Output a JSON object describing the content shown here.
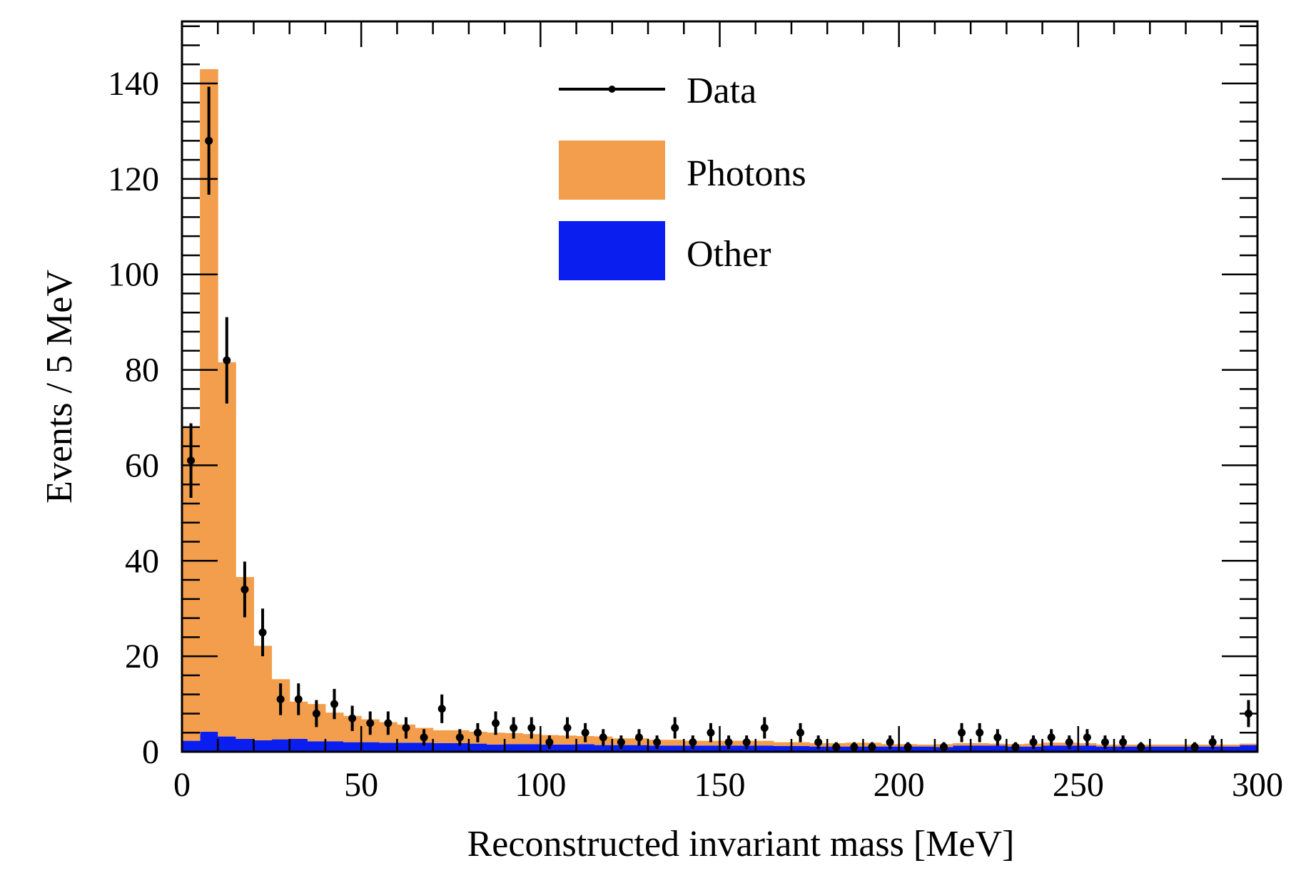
{
  "chart_data": {
    "type": "bar",
    "xlabel": "Reconstructed invariant mass [MeV]",
    "ylabel": "Events / 5 MeV",
    "xlim": [
      0,
      300
    ],
    "ylim": [
      0,
      153
    ],
    "bin_width": 5,
    "xticks": [
      0,
      50,
      100,
      150,
      200,
      250,
      300
    ],
    "yticks": [
      0,
      20,
      40,
      60,
      80,
      100,
      120,
      140
    ],
    "grid": false,
    "legend_position": "top-center",
    "colors": {
      "photons": "#f29e4c",
      "other": "#0a1ef0",
      "data": "#000000"
    },
    "legend": [
      {
        "label": "Data",
        "style": "marker-line"
      },
      {
        "label": "Photons",
        "style": "fill"
      },
      {
        "label": "Other",
        "style": "fill"
      }
    ],
    "bin_edges_start": [
      0,
      5,
      10,
      15,
      20,
      25,
      30,
      35,
      40,
      45,
      50,
      55,
      60,
      65,
      70,
      75,
      80,
      85,
      90,
      95,
      100,
      105,
      110,
      115,
      120,
      125,
      130,
      135,
      140,
      145,
      150,
      155,
      160,
      165,
      170,
      175,
      180,
      185,
      190,
      195,
      200,
      205,
      210,
      215,
      220,
      225,
      230,
      235,
      240,
      245,
      250,
      255,
      260,
      265,
      270,
      275,
      280,
      285,
      290,
      295
    ],
    "series": [
      {
        "name": "Other",
        "style": "stacked-histogram",
        "values": [
          2.3,
          4.2,
          3.2,
          2.7,
          2.4,
          2.6,
          2.7,
          2.2,
          2.2,
          2.0,
          2.0,
          1.9,
          1.9,
          1.9,
          1.8,
          1.8,
          1.7,
          1.5,
          1.6,
          1.6,
          1.5,
          1.5,
          1.6,
          1.4,
          1.4,
          1.4,
          1.3,
          1.3,
          1.3,
          1.3,
          1.3,
          1.3,
          1.3,
          1.2,
          1.2,
          1.1,
          1.1,
          1.1,
          1.1,
          1.1,
          1.1,
          1.1,
          1.0,
          1.3,
          1.3,
          1.3,
          1.1,
          1.1,
          1.3,
          1.3,
          1.3,
          1.1,
          1.1,
          1.1,
          1.1,
          1.1,
          1.1,
          1.1,
          1.1,
          1.4
        ]
      },
      {
        "name": "Photons",
        "style": "stacked-histogram",
        "values": [
          65.5,
          138.8,
          78.4,
          33.9,
          19.8,
          12.6,
          7.8,
          7.8,
          6.0,
          5.5,
          4.8,
          4.3,
          3.8,
          3.1,
          2.7,
          2.7,
          2.5,
          2.5,
          2.3,
          2.1,
          2.0,
          1.9,
          1.7,
          1.8,
          1.4,
          1.4,
          1.2,
          1.2,
          1.0,
          1.0,
          1.0,
          1.0,
          1.0,
          0.8,
          0.8,
          0.7,
          0.7,
          0.8,
          0.8,
          0.5,
          0.5,
          0.4,
          0.6,
          0.5,
          0.5,
          0.4,
          0.5,
          0.6,
          0.6,
          0.6,
          0.5,
          0.4,
          0.4,
          0.4,
          0.4,
          0.4,
          0.4,
          0.4,
          0.4,
          0.3
        ]
      },
      {
        "name": "Data",
        "style": "points-with-errors",
        "x": [
          2.5,
          7.5,
          12.5,
          17.5,
          22.5,
          27.5,
          32.5,
          37.5,
          42.5,
          47.5,
          52.5,
          57.5,
          62.5,
          67.5,
          72.5,
          77.5,
          82.5,
          87.5,
          92.5,
          97.5,
          102.5,
          107.5,
          112.5,
          117.5,
          122.5,
          127.5,
          132.5,
          137.5,
          142.5,
          147.5,
          152.5,
          157.5,
          162.5,
          172.5,
          177.5,
          182.5,
          187.5,
          192.5,
          197.5,
          202.5,
          212.5,
          217.5,
          222.5,
          227.5,
          232.5,
          237.5,
          242.5,
          247.5,
          252.5,
          257.5,
          262.5,
          267.5,
          282.5,
          287.5,
          297.5
        ],
        "values": [
          61,
          128,
          82,
          34,
          25,
          11,
          11,
          8,
          10,
          7,
          6,
          6,
          5,
          3,
          9,
          3,
          4,
          6,
          5,
          5,
          2,
          5,
          4,
          3,
          2,
          3,
          2,
          5,
          2,
          4,
          2,
          2,
          5,
          4,
          2,
          1,
          1,
          1,
          2,
          1,
          1,
          4,
          4,
          3,
          1,
          2,
          3,
          2,
          3,
          2,
          2,
          1,
          1,
          2,
          8
        ]
      }
    ]
  }
}
